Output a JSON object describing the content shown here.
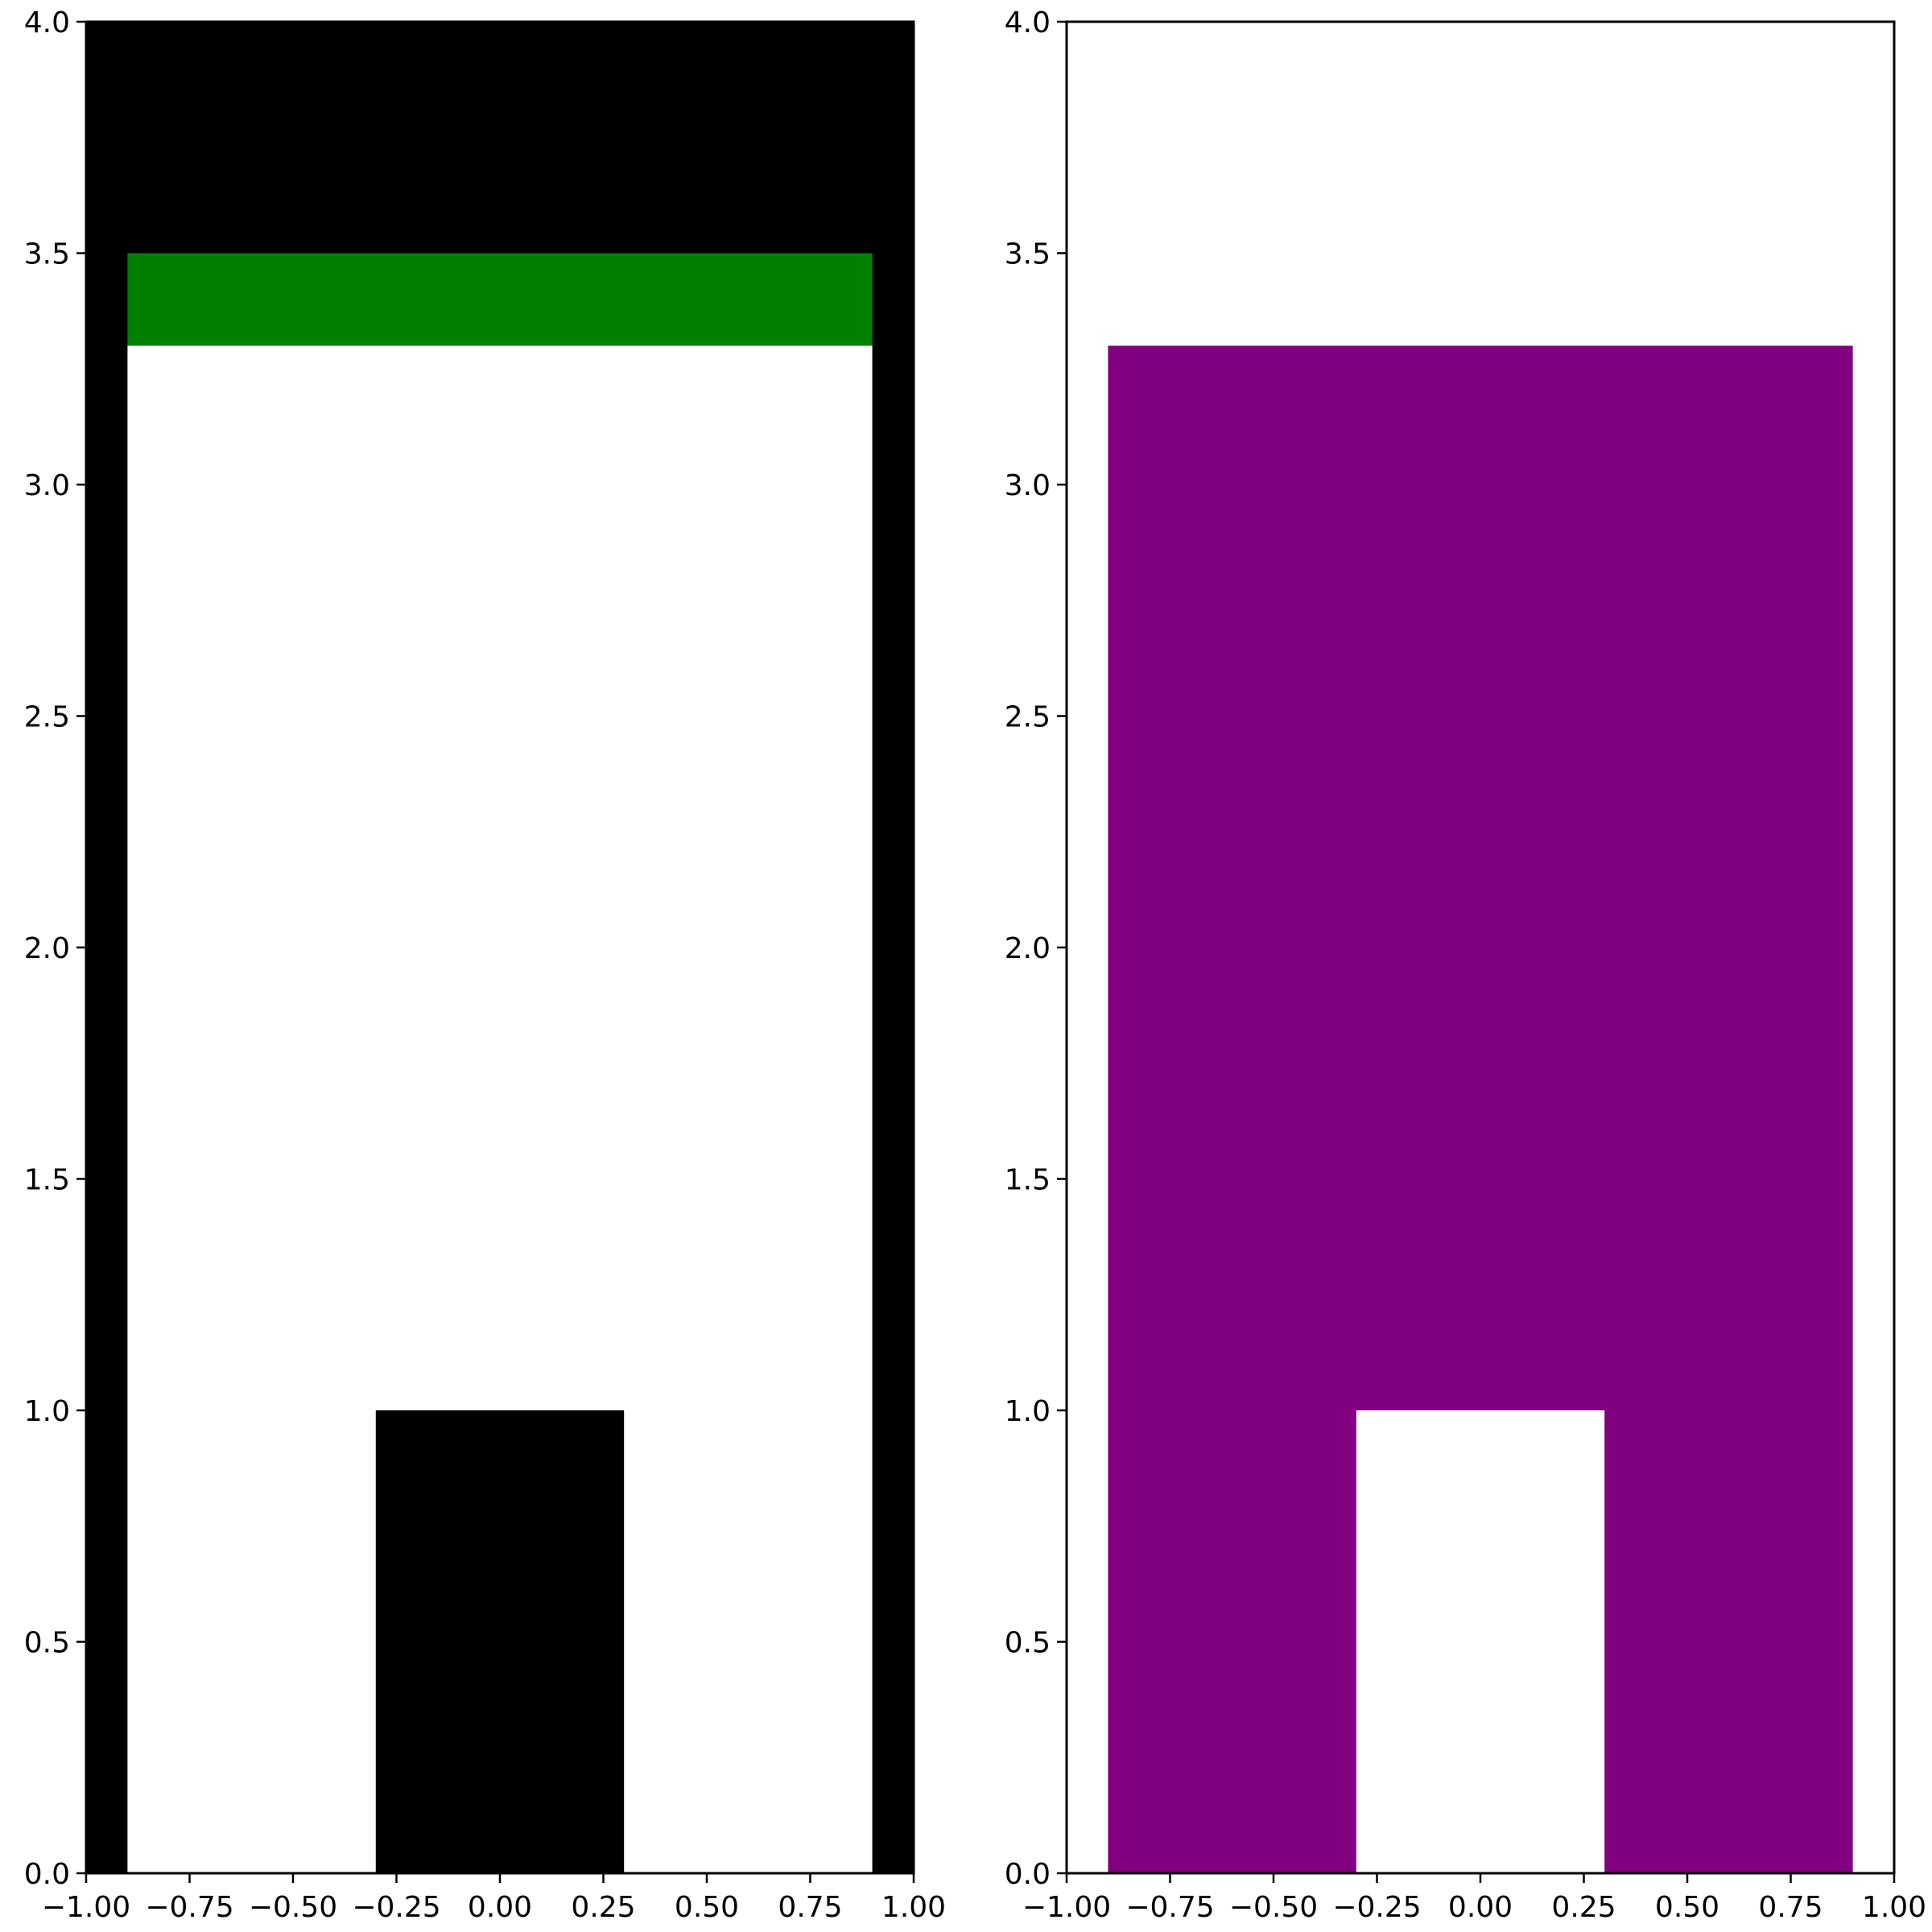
{
  "chart_data": [
    {
      "type": "area",
      "panel": "left",
      "xlim": [
        -1.0,
        1.0
      ],
      "ylim": [
        0.0,
        4.0
      ],
      "x_ticks": [
        "−1.00",
        "−0.75",
        "−0.50",
        "−0.25",
        "0.00",
        "0.25",
        "0.50",
        "0.75",
        "1.00"
      ],
      "y_ticks": [
        "0.0",
        "0.5",
        "1.0",
        "1.5",
        "2.0",
        "2.5",
        "3.0",
        "3.5",
        "4.0"
      ],
      "background_color": "#000000",
      "shapes": [
        {
          "name": "inner-white-region",
          "x": [
            -0.9,
            0.9
          ],
          "y": [
            0.0,
            3.3
          ],
          "color": "#ffffff"
        },
        {
          "name": "green-band",
          "x": [
            -0.9,
            0.9
          ],
          "y": [
            3.3,
            3.5
          ],
          "color": "#008000"
        },
        {
          "name": "center-black-block",
          "x": [
            -0.3,
            0.3
          ],
          "y": [
            0.0,
            1.0
          ],
          "color": "#000000"
        }
      ]
    },
    {
      "type": "area",
      "panel": "right",
      "xlim": [
        -1.0,
        1.0
      ],
      "ylim": [
        0.0,
        4.0
      ],
      "x_ticks": [
        "−1.00",
        "−0.75",
        "−0.50",
        "−0.25",
        "0.00",
        "0.25",
        "0.50",
        "0.75",
        "1.00"
      ],
      "y_ticks": [
        "0.0",
        "0.5",
        "1.0",
        "1.5",
        "2.0",
        "2.5",
        "3.0",
        "3.5",
        "4.0"
      ],
      "background_color": "#ffffff",
      "shapes": [
        {
          "name": "purple-region",
          "x": [
            -0.9,
            0.9
          ],
          "y": [
            0.0,
            3.3
          ],
          "color": "#800080"
        },
        {
          "name": "center-white-block",
          "x": [
            -0.3,
            0.3
          ],
          "y": [
            0.0,
            1.0
          ],
          "color": "#ffffff"
        }
      ]
    }
  ]
}
